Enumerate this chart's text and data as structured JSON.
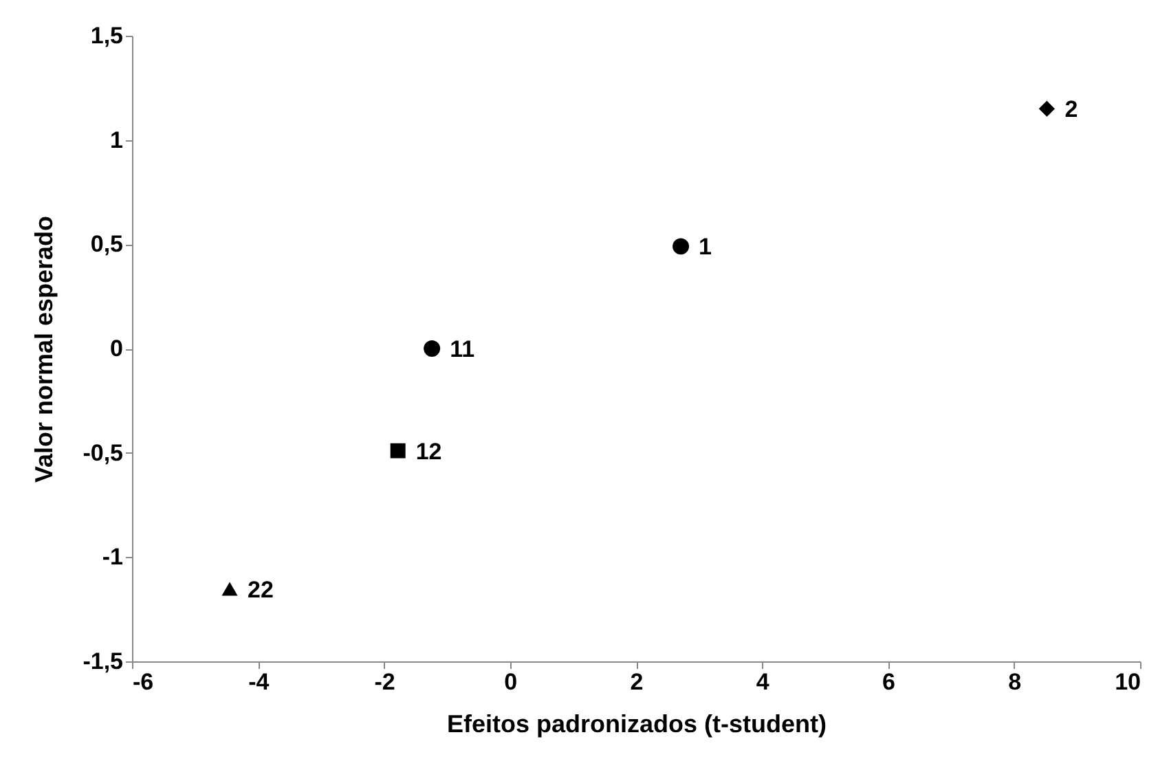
{
  "chart_data": {
    "type": "scatter",
    "xlabel": "Efeitos padronizados (t-student)",
    "ylabel": "Valor normal esperado",
    "xlim": [
      -6,
      10
    ],
    "xticks": [
      -6,
      -4,
      -2,
      0,
      2,
      4,
      6,
      8,
      10
    ],
    "ylim": [
      -1.5,
      1.5
    ],
    "yticks": [
      {
        "value": -1.5,
        "label": "-1,5"
      },
      -1,
      {
        "value": -0.5,
        "label": "-0,5"
      },
      0,
      {
        "value": 0.5,
        "label": "0,5"
      },
      1,
      {
        "value": 1.5,
        "label": "1,5"
      }
    ],
    "series": [
      {
        "name": "1",
        "color": "#000000",
        "marker": "circle",
        "x": [
          2.71
        ],
        "values": [
          0.49
        ]
      },
      {
        "name": "2",
        "color": "#000000",
        "marker": "diamond",
        "x": [
          8.52
        ],
        "values": [
          1.15
        ]
      },
      {
        "name": "11",
        "color": "#000000",
        "marker": "circle",
        "x": [
          -1.24
        ],
        "values": [
          0.0
        ]
      },
      {
        "name": "12",
        "color": "#000000",
        "marker": "square",
        "x": [
          -1.78
        ],
        "values": [
          -0.49
        ]
      },
      {
        "name": "22",
        "color": "#000000",
        "marker": "triangle",
        "x": [
          -4.45
        ],
        "values": [
          -1.155
        ]
      }
    ]
  }
}
